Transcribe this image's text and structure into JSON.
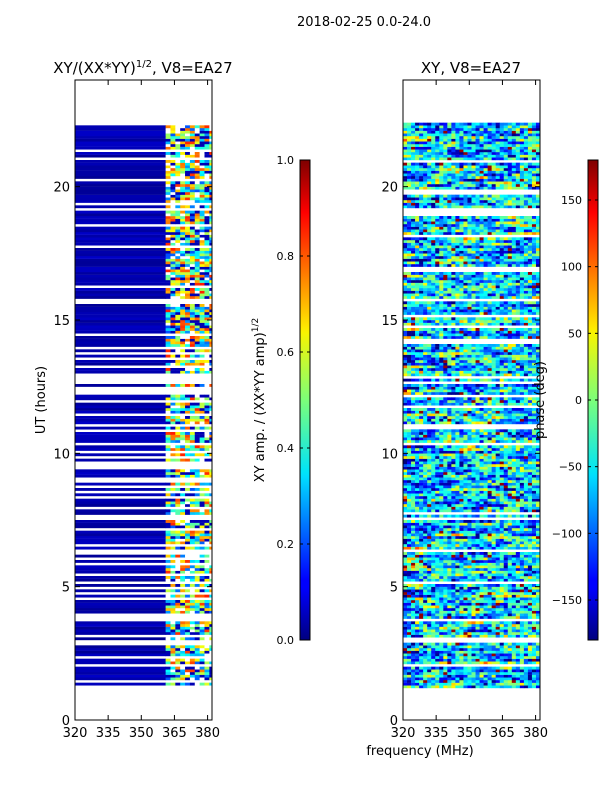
{
  "figure": {
    "suptitle": "2018-02-25 0.0-24.0",
    "xlabel": "frequency (MHz)"
  },
  "chart_data": [
    {
      "type": "heatmap",
      "title_prefix": "XY/(XX*YY)",
      "title_exponent": "1/2",
      "title_suffix": ", V8=EA27",
      "xlabel": "",
      "ylabel": "UT (hours)",
      "xlim": [
        320,
        382
      ],
      "ylim": [
        0,
        24
      ],
      "xticks": [
        "320",
        "335",
        "350",
        "365",
        "380"
      ],
      "xtick_values": [
        320,
        335,
        350,
        365,
        380
      ],
      "yticks": [
        "0",
        "5",
        "10",
        "15",
        "20"
      ],
      "ytick_values": [
        0,
        5,
        10,
        15,
        20
      ],
      "data_time_range": [
        1.2,
        22.4
      ],
      "high_values_freq_range": [
        361,
        382
      ],
      "colormap": "jet",
      "colorbar": {
        "label_prefix": "XY amp. / (XX*YY amp)",
        "label_exponent": "1/2",
        "range": [
          0.0,
          1.0
        ],
        "ticks": [
          "0.0",
          "0.2",
          "0.4",
          "0.6",
          "0.8",
          "1.0"
        ],
        "tick_values": [
          0.0,
          0.2,
          0.4,
          0.6,
          0.8,
          1.0
        ]
      }
    },
    {
      "type": "heatmap",
      "title": "XY, V8=EA27",
      "xlabel": "frequency (MHz)",
      "ylabel": "",
      "xlim": [
        320,
        382
      ],
      "ylim": [
        0,
        24
      ],
      "xticks": [
        "320",
        "335",
        "350",
        "365",
        "380"
      ],
      "xtick_values": [
        320,
        335,
        350,
        365,
        380
      ],
      "yticks": [
        "0",
        "5",
        "10",
        "15",
        "20"
      ],
      "ytick_values": [
        0,
        5,
        10,
        15,
        20
      ],
      "data_time_range": [
        1.2,
        22.4
      ],
      "colormap": "jet",
      "colorbar": {
        "label": "phase (deg)",
        "range": [
          -180,
          180
        ],
        "ticks": [
          "−150",
          "−100",
          "−50",
          "0",
          "50",
          "100",
          "150"
        ],
        "tick_values": [
          -150,
          -100,
          -50,
          0,
          50,
          100,
          150
        ]
      }
    }
  ]
}
